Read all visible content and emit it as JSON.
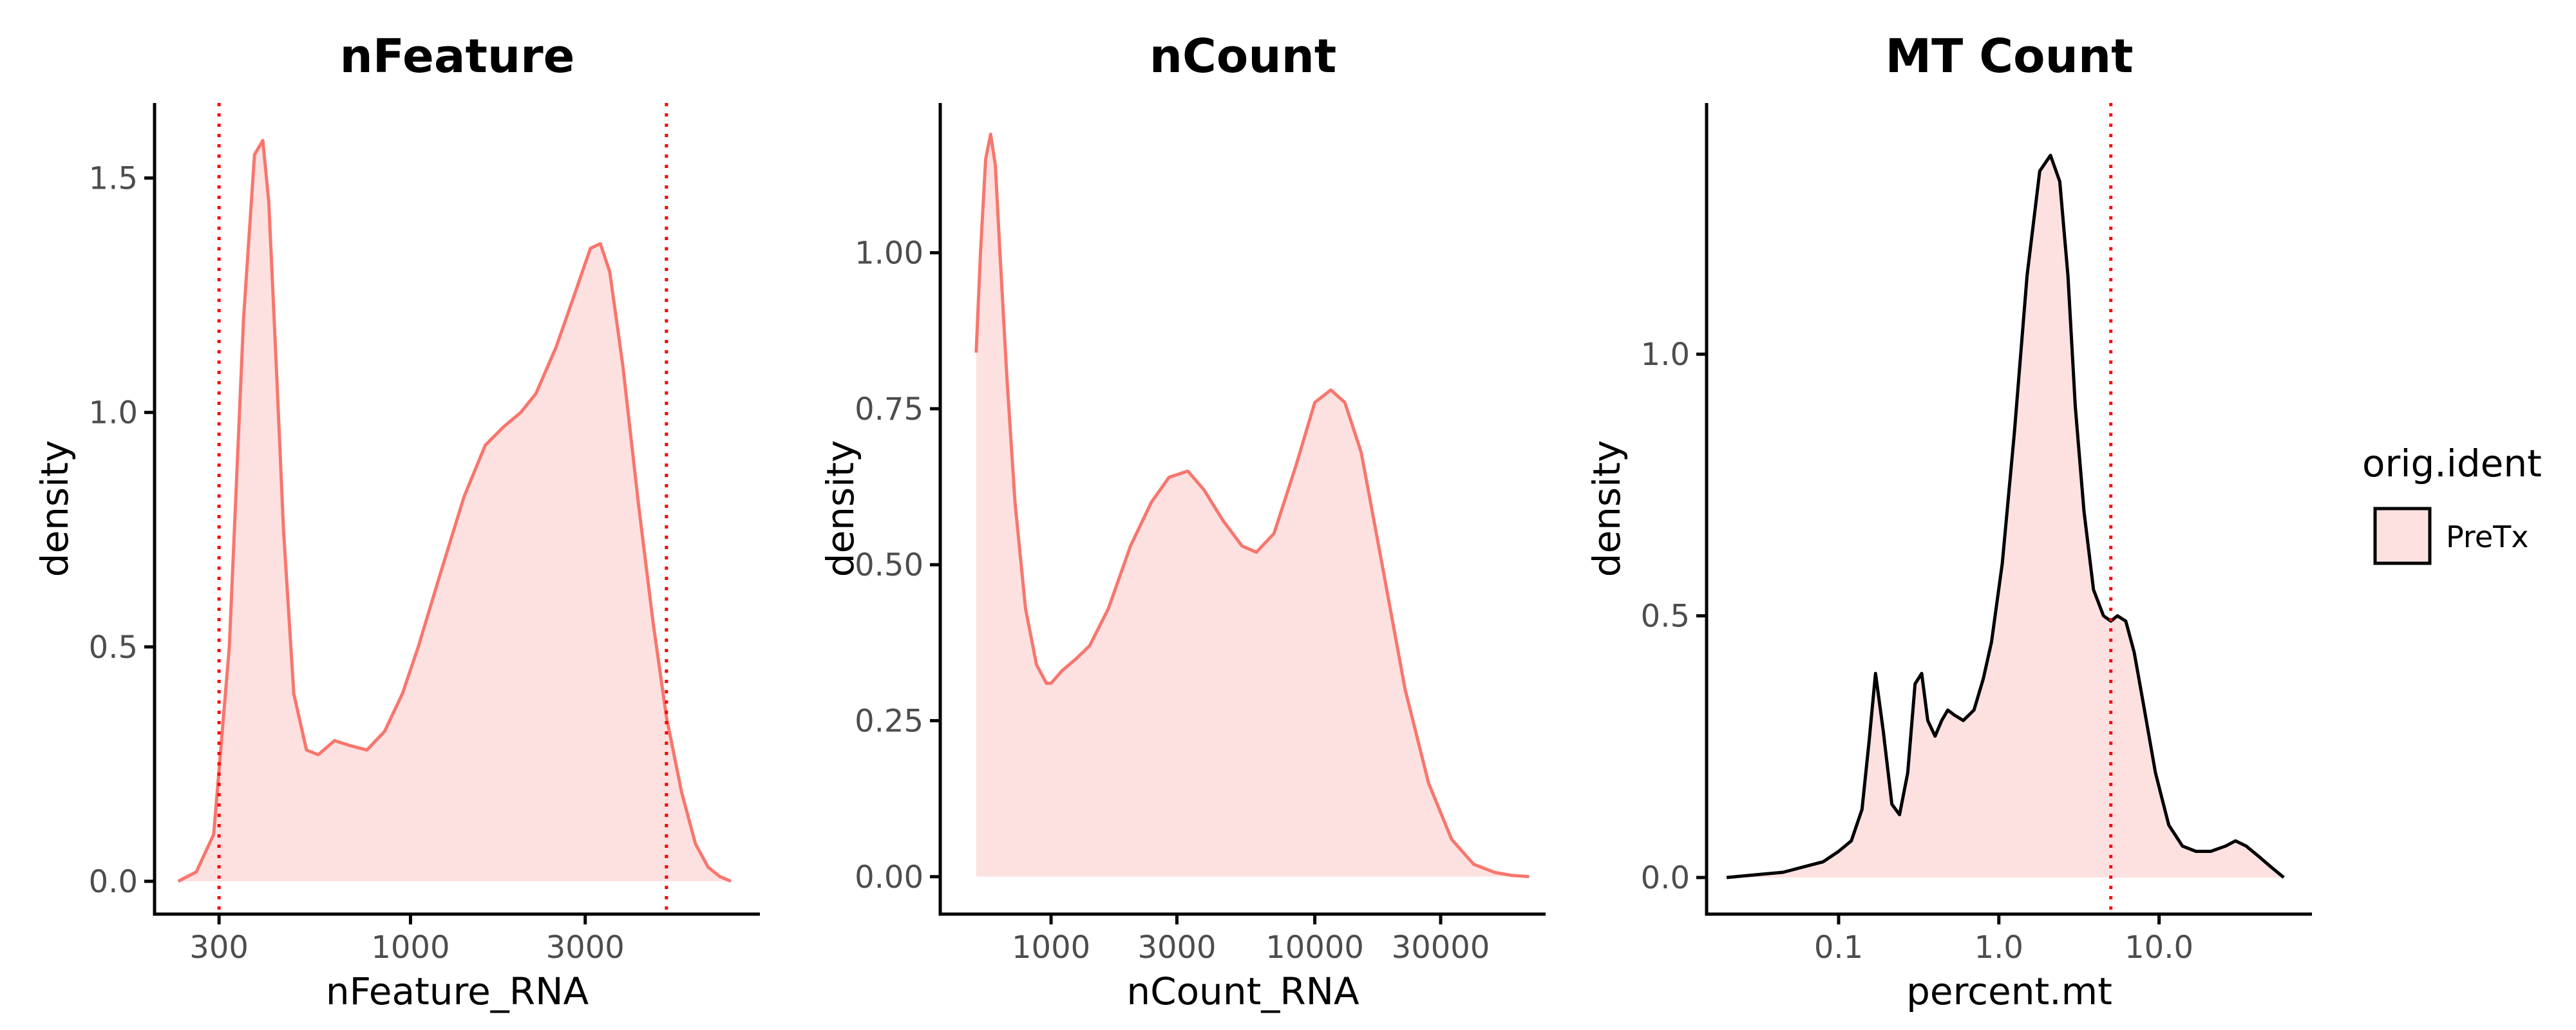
{
  "colors": {
    "fill": "#fde1e1",
    "line": "#f8766d",
    "cutoff": "#ff0000",
    "axis": "#000000",
    "legend_key_border": "#000000"
  },
  "chart_data": [
    {
      "type": "area",
      "title": "nFeature",
      "xlabel": "nFeature_RNA",
      "ylabel": "density",
      "x_scale": "log10",
      "xlim": [
        200,
        9000
      ],
      "ylim": [
        -0.07,
        1.66
      ],
      "x_ticks": [
        300,
        1000,
        3000
      ],
      "x_tick_labels": [
        "300",
        "1000",
        "3000"
      ],
      "y_ticks": [
        0,
        0.5,
        1,
        1.5
      ],
      "y_tick_labels": [
        "0.0",
        "0.5",
        "1.0",
        "1.5"
      ],
      "line_color": "#f8766d",
      "cutoffs": [
        300,
        5000
      ],
      "series": [
        {
          "name": "PreTx",
          "x": [
            232,
            260,
            290,
            320,
            350,
            375,
            395,
            410,
            430,
            450,
            480,
            520,
            560,
            620,
            680,
            760,
            850,
            950,
            1050,
            1200,
            1400,
            1600,
            1800,
            2000,
            2200,
            2500,
            2800,
            3100,
            3300,
            3500,
            3800,
            4200,
            4600,
            5000,
            5500,
            6000,
            6500,
            7000,
            7500
          ],
          "y": [
            0.0,
            0.02,
            0.1,
            0.5,
            1.2,
            1.55,
            1.58,
            1.45,
            1.1,
            0.75,
            0.4,
            0.28,
            0.27,
            0.3,
            0.29,
            0.28,
            0.32,
            0.4,
            0.5,
            0.65,
            0.82,
            0.93,
            0.97,
            1.0,
            1.04,
            1.14,
            1.25,
            1.35,
            1.36,
            1.3,
            1.1,
            0.8,
            0.55,
            0.35,
            0.19,
            0.08,
            0.03,
            0.01,
            0.0
          ]
        }
      ]
    },
    {
      "type": "area",
      "title": "nCount",
      "xlabel": "nCount_RNA",
      "ylabel": "density",
      "x_scale": "log10",
      "xlim": [
        380,
        75000
      ],
      "ylim": [
        -0.06,
        1.24
      ],
      "x_ticks": [
        1000,
        3000,
        10000,
        30000
      ],
      "x_tick_labels": [
        "1000",
        "3000",
        "10000",
        "30000"
      ],
      "y_ticks": [
        0,
        0.25,
        0.5,
        0.75,
        1.0
      ],
      "y_tick_labels": [
        "0.00",
        "0.25",
        "0.50",
        "0.75",
        "1.00"
      ],
      "line_color": "#f8766d",
      "cutoffs": [],
      "series": [
        {
          "name": "PreTx",
          "x": [
            520,
            540,
            565,
            590,
            615,
            640,
            680,
            730,
            800,
            880,
            960,
            1000,
            1100,
            1250,
            1400,
            1650,
            2000,
            2400,
            2800,
            3300,
            3800,
            4500,
            5300,
            6000,
            7000,
            8500,
            10000,
            11500,
            13000,
            15000,
            18000,
            22000,
            27000,
            33000,
            40000,
            48000,
            56000,
            65000
          ],
          "y": [
            0.84,
            1.0,
            1.15,
            1.19,
            1.14,
            1.0,
            0.8,
            0.6,
            0.43,
            0.34,
            0.31,
            0.31,
            0.33,
            0.35,
            0.37,
            0.43,
            0.53,
            0.6,
            0.64,
            0.65,
            0.62,
            0.57,
            0.53,
            0.52,
            0.55,
            0.66,
            0.76,
            0.78,
            0.76,
            0.68,
            0.5,
            0.3,
            0.15,
            0.06,
            0.02,
            0.007,
            0.002,
            0.0
          ]
        }
      ]
    },
    {
      "type": "area",
      "title": "MT Count",
      "xlabel": "percent.mt",
      "ylabel": "density",
      "x_scale": "log10",
      "xlim": [
        0.015,
        90
      ],
      "ylim": [
        -0.07,
        1.48
      ],
      "x_ticks": [
        0.1,
        1.0,
        10.0
      ],
      "x_tick_labels": [
        "0.1",
        "1.0",
        "10.0"
      ],
      "y_ticks": [
        0,
        0.5,
        1.0
      ],
      "y_tick_labels": [
        "0.0",
        "0.5",
        "1.0"
      ],
      "line_color": "#000000",
      "cutoffs": [
        5
      ],
      "series": [
        {
          "name": "PreTx",
          "x": [
            0.02,
            0.03,
            0.045,
            0.06,
            0.08,
            0.1,
            0.12,
            0.14,
            0.155,
            0.17,
            0.19,
            0.215,
            0.24,
            0.27,
            0.3,
            0.33,
            0.36,
            0.4,
            0.44,
            0.48,
            0.53,
            0.6,
            0.7,
            0.8,
            0.9,
            1.05,
            1.25,
            1.5,
            1.8,
            2.1,
            2.4,
            2.7,
            3.0,
            3.4,
            3.9,
            4.5,
            5.0,
            5.5,
            6.2,
            7.0,
            8.0,
            9.5,
            11.5,
            14,
            17,
            21,
            26,
            30,
            35,
            42,
            50,
            60
          ],
          "y": [
            0.0,
            0.005,
            0.01,
            0.02,
            0.03,
            0.05,
            0.07,
            0.13,
            0.26,
            0.39,
            0.28,
            0.14,
            0.12,
            0.2,
            0.37,
            0.39,
            0.3,
            0.27,
            0.3,
            0.32,
            0.31,
            0.3,
            0.32,
            0.38,
            0.45,
            0.6,
            0.85,
            1.15,
            1.35,
            1.38,
            1.33,
            1.15,
            0.9,
            0.7,
            0.55,
            0.5,
            0.49,
            0.5,
            0.49,
            0.43,
            0.33,
            0.2,
            0.1,
            0.06,
            0.05,
            0.05,
            0.06,
            0.07,
            0.06,
            0.04,
            0.02,
            0.0
          ]
        }
      ]
    }
  ],
  "legend": {
    "title": "orig.ident",
    "items": [
      {
        "label": "PreTx",
        "color": "#fde1e1",
        "border": "#000000"
      }
    ]
  }
}
